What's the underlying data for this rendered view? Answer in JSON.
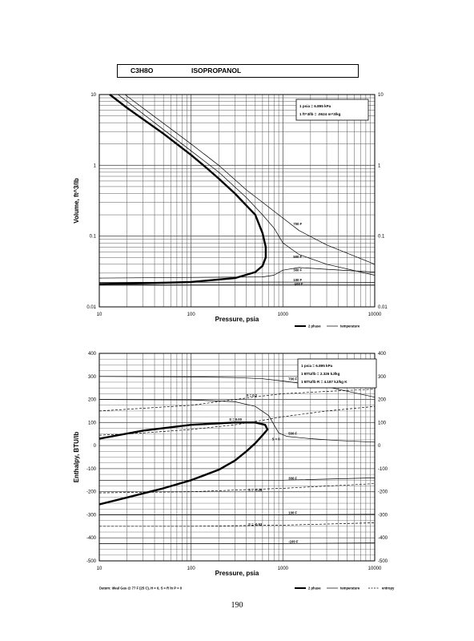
{
  "header": {
    "formula": "C3H8O",
    "name": "ISOPROPANOL"
  },
  "page_number": "190",
  "chart_data": [
    {
      "type": "line",
      "xscale": "log",
      "yscale": "log",
      "xlim": [
        10,
        10000
      ],
      "ylim": [
        0.01,
        10
      ],
      "xlabel": "Pressure, psia",
      "ylabel": "Volume, ft^3/lb",
      "x_ticks": [
        {
          "v": 10,
          "label": "10"
        },
        {
          "v": 100,
          "label": "100"
        },
        {
          "v": 1000,
          "label": "1000"
        },
        {
          "v": 10000,
          "label": "10000"
        }
      ],
      "y_ticks": [
        {
          "v": 0.01,
          "label": "0.01"
        },
        {
          "v": 0.1,
          "label": "0.1"
        },
        {
          "v": 1,
          "label": "1"
        },
        {
          "v": 10,
          "label": "10"
        }
      ],
      "info_lines": [
        "1 psia = 6.895 kPa",
        "1 ft^3/lb = .0624 m^3/kg"
      ],
      "legend": [
        {
          "label": "2 phase",
          "style": "bold"
        },
        {
          "label": "temperature",
          "style": "thin"
        }
      ],
      "series": [
        {
          "name": "2 phase",
          "style": "bold",
          "points": [
            [
              10,
              0.021
            ],
            [
              30,
              0.0215
            ],
            [
              100,
              0.0225
            ],
            [
              300,
              0.0255
            ],
            [
              500,
              0.031
            ],
            [
              600,
              0.038
            ],
            [
              650,
              0.05
            ],
            [
              650,
              0.07
            ],
            [
              600,
              0.11
            ],
            [
              500,
              0.2
            ],
            [
              300,
              0.4
            ],
            [
              200,
              0.65
            ],
            [
              150,
              0.9
            ],
            [
              100,
              1.4
            ],
            [
              50,
              2.8
            ],
            [
              20,
              6.5
            ],
            [
              13,
              10
            ]
          ]
        },
        {
          "name": "",
          "style": "thin",
          "points": [
            [
              16,
              10
            ],
            [
              100,
              1.6
            ],
            [
              200,
              0.8
            ],
            [
              400,
              0.35
            ],
            [
              600,
              0.2
            ],
            [
              800,
              0.13
            ],
            [
              1000,
              0.08
            ],
            [
              1500,
              0.055
            ],
            [
              3000,
              0.04
            ],
            [
              10000,
              0.028
            ]
          ]
        },
        {
          "name": "",
          "style": "thin",
          "points": [
            [
              19,
              10
            ],
            [
              100,
              2
            ],
            [
              200,
              1
            ],
            [
              400,
              0.45
            ],
            [
              600,
              0.3
            ],
            [
              900,
              0.2
            ],
            [
              1500,
              0.12
            ],
            [
              3000,
              0.075
            ],
            [
              10000,
              0.04
            ]
          ]
        },
        {
          "name": "",
          "style": "thin",
          "points": [
            [
              10,
              0.0255
            ],
            [
              600,
              0.0265
            ],
            [
              800,
              0.028
            ],
            [
              1000,
              0.033
            ],
            [
              1500,
              0.036
            ],
            [
              3000,
              0.034
            ],
            [
              10000,
              0.031
            ]
          ]
        },
        {
          "name": "",
          "style": "thin",
          "points": [
            [
              10,
              0.0222
            ],
            [
              1000,
              0.0224
            ],
            [
              10000,
              0.0222
            ]
          ]
        },
        {
          "name": "",
          "style": "thin",
          "points": [
            [
              10,
              0.0205
            ],
            [
              1000,
              0.0207
            ],
            [
              10000,
              0.0206
            ]
          ]
        }
      ],
      "annotations": [
        {
          "text": "700 F",
          "x": 1300,
          "y": 0.15
        },
        {
          "text": "500 F",
          "x": 1300,
          "y": 0.052
        },
        {
          "text": "300 F",
          "x": 1300,
          "y": 0.0335
        },
        {
          "text": "100 F",
          "x": 1300,
          "y": 0.0243
        },
        {
          "text": "-100 F",
          "x": 1300,
          "y": 0.0212
        }
      ]
    },
    {
      "type": "line",
      "xscale": "log",
      "yscale": "linear",
      "xlim": [
        10,
        10000
      ],
      "ylim": [
        -500,
        400
      ],
      "xlabel": "Pressure, psia",
      "ylabel": "Enthalpy, BTU/lb",
      "x_ticks": [
        {
          "v": 10,
          "label": "10"
        },
        {
          "v": 100,
          "label": "100"
        },
        {
          "v": 1000,
          "label": "1000"
        },
        {
          "v": 10000,
          "label": "10000"
        }
      ],
      "y_ticks_left": [
        {
          "v": -500,
          "label": "-500"
        },
        {
          "v": -400,
          "label": "-400"
        },
        {
          "v": -300,
          "label": "-300"
        },
        {
          "v": -200,
          "label": "-200"
        },
        {
          "v": -100,
          "label": "-100"
        },
        {
          "v": 0,
          "label": "0"
        },
        {
          "v": 100,
          "label": "100"
        },
        {
          "v": 200,
          "label": "200"
        },
        {
          "v": 300,
          "label": "300"
        },
        {
          "v": 400,
          "label": "400"
        }
      ],
      "y_ticks_right": [
        {
          "v": -500,
          "label": "-500"
        },
        {
          "v": -400,
          "label": "-400"
        },
        {
          "v": -300,
          "label": "-300"
        },
        {
          "v": -200,
          "label": "-200"
        },
        {
          "v": -100,
          "label": "-100"
        },
        {
          "v": 0,
          "label": "0"
        },
        {
          "v": 100,
          "label": "100"
        },
        {
          "v": 200,
          "label": "200"
        },
        {
          "v": 300,
          "label": "300"
        },
        {
          "v": 400,
          "label": "400"
        }
      ],
      "info_lines": [
        "1 psia = 6.895 kPa",
        "1 BTU/lb = 2.326 kJ/kg",
        "1 BTU/lb R = 4.187 kJ/kg K"
      ],
      "legend": [
        {
          "label": "2 phase",
          "style": "bold"
        },
        {
          "label": "temperature",
          "style": "thin"
        },
        {
          "label": "entropy",
          "style": "dash"
        }
      ],
      "footnote": "Datum: Ideal Gas @ 77 F (25 C),  H = 0,  S = R ln P = 0",
      "series": [
        {
          "name": "2 phase",
          "style": "bold",
          "points": [
            [
              10,
              -255
            ],
            [
              20,
              -225
            ],
            [
              50,
              -185
            ],
            [
              100,
              -150
            ],
            [
              200,
              -105
            ],
            [
              300,
              -65
            ],
            [
              400,
              -25
            ],
            [
              500,
              10
            ],
            [
              600,
              45
            ],
            [
              680,
              70
            ],
            [
              640,
              90
            ],
            [
              500,
              100
            ],
            [
              300,
              100
            ],
            [
              100,
              90
            ],
            [
              30,
              65
            ],
            [
              10,
              30
            ]
          ]
        },
        {
          "name": "",
          "style": "thin",
          "points": [
            [
              10,
              300
            ],
            [
              100,
              298
            ],
            [
              300,
              295
            ],
            [
              600,
              290
            ],
            [
              1000,
              280
            ],
            [
              3000,
              255
            ],
            [
              10000,
              210
            ]
          ]
        },
        {
          "name": "",
          "style": "thin",
          "points": [
            [
              10,
              200
            ],
            [
              100,
              198
            ],
            [
              300,
              190
            ],
            [
              500,
              170
            ],
            [
              700,
              130
            ],
            [
              900,
              55
            ],
            [
              1100,
              40
            ],
            [
              2000,
              30
            ],
            [
              4000,
              22
            ],
            [
              10000,
              15
            ]
          ]
        },
        {
          "name": "",
          "style": "thin",
          "points": [
            [
              10,
              -150
            ],
            [
              1000,
              -150
            ],
            [
              10000,
              -140
            ]
          ]
        },
        {
          "name": "",
          "style": "thin",
          "points": [
            [
              10,
              -300
            ],
            [
              1000,
              -300
            ],
            [
              10000,
              -298
            ]
          ]
        },
        {
          "name": "",
          "style": "thin",
          "points": [
            [
              10,
              -425
            ],
            [
              1000,
              -425
            ],
            [
              10000,
              -422
            ]
          ]
        },
        {
          "name": "",
          "style": "dash",
          "points": [
            [
              10,
              150
            ],
            [
              100,
              175
            ],
            [
              300,
              200
            ],
            [
              600,
              215
            ],
            [
              1000,
              225
            ],
            [
              3000,
              235
            ],
            [
              10000,
              245
            ]
          ]
        },
        {
          "name": "",
          "style": "dash",
          "points": [
            [
              10,
              45
            ],
            [
              30,
              55
            ],
            [
              100,
              70
            ],
            [
              300,
              90
            ],
            [
              600,
              110
            ],
            [
              1000,
              125
            ],
            [
              3000,
              150
            ],
            [
              10000,
              170
            ]
          ]
        },
        {
          "name": "",
          "style": "dash",
          "points": [
            [
              10,
              -205
            ],
            [
              100,
              -200
            ],
            [
              1000,
              -185
            ],
            [
              10000,
              -165
            ]
          ]
        },
        {
          "name": "",
          "style": "dash",
          "points": [
            [
              10,
              -350
            ],
            [
              100,
              -350
            ],
            [
              1000,
              -345
            ],
            [
              10000,
              -335
            ]
          ]
        }
      ],
      "annotations": [
        {
          "text": "700 F",
          "x": 1150,
          "y": 290
        },
        {
          "text": "500 F",
          "x": 1150,
          "y": 55
        },
        {
          "text": "300 F",
          "x": 1150,
          "y": -140
        },
        {
          "text": "100 F",
          "x": 1150,
          "y": -290
        },
        {
          "text": "-100 F",
          "x": 1150,
          "y": -415
        },
        {
          "text": "S = 0.2",
          "x": 400,
          "y": 220
        },
        {
          "text": "S = 0.00",
          "x": 260,
          "y": 115
        },
        {
          "text": "S = 0",
          "x": 760,
          "y": 30
        },
        {
          "text": "S = -0.28",
          "x": 420,
          "y": -190
        },
        {
          "text": "S = -0.53",
          "x": 420,
          "y": -340
        }
      ]
    }
  ]
}
